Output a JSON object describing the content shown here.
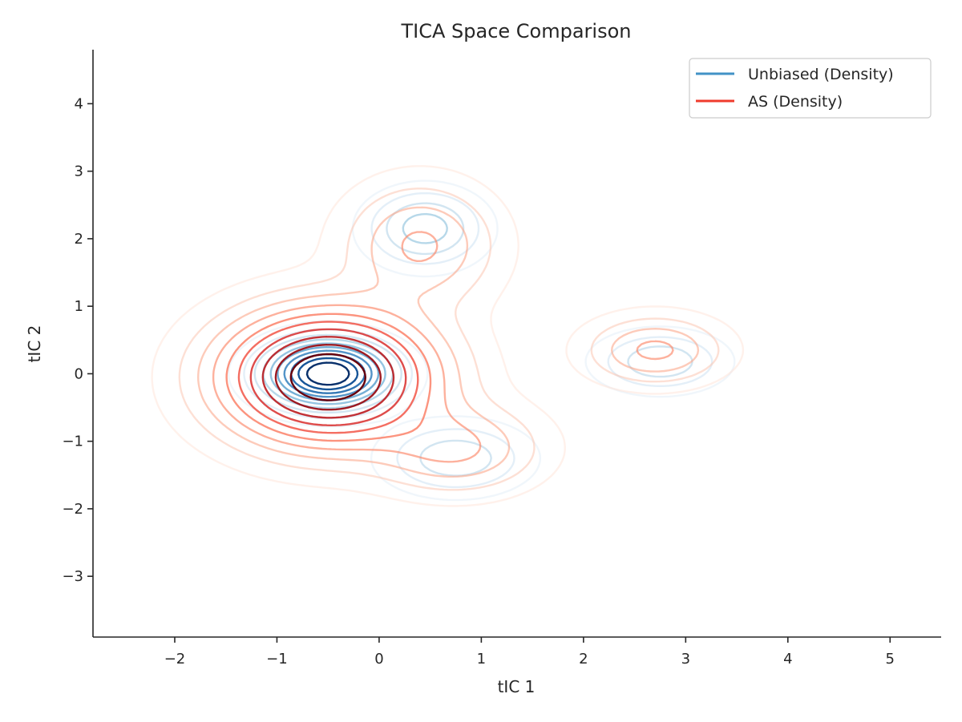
{
  "chart_data": {
    "type": "contour",
    "title": "TICA Space Comparison",
    "xlabel": "tIC 1",
    "ylabel": "tIC 2",
    "xlim": [
      -2.8,
      5.5
    ],
    "ylim": [
      -3.9,
      4.8
    ],
    "xticks": [
      -2,
      -1,
      0,
      1,
      2,
      3,
      4,
      5
    ],
    "yticks": [
      -3,
      -2,
      -1,
      0,
      1,
      2,
      3,
      4
    ],
    "xtick_labels": [
      "−2",
      "−1",
      "0",
      "1",
      "2",
      "3",
      "4",
      "5"
    ],
    "ytick_labels": [
      "−3",
      "−2",
      "−1",
      "0",
      "1",
      "2",
      "3",
      "4"
    ],
    "grid": false,
    "legend": {
      "position": "top-right"
    },
    "series": [
      {
        "name": "Unbiased (Density)",
        "color": "#4292c6",
        "colormap": "Blues",
        "levels": 10,
        "components": [
          {
            "weight": 0.55,
            "mean": [
              -0.5,
              0.0
            ],
            "sd": [
              0.35,
              0.28
            ]
          },
          {
            "weight": 0.14,
            "mean": [
              0.45,
              2.15
            ],
            "sd": [
              0.32,
              0.32
            ]
          },
          {
            "weight": 0.12,
            "mean": [
              0.75,
              -1.25
            ],
            "sd": [
              0.4,
              0.3
            ]
          },
          {
            "weight": 0.09,
            "mean": [
              2.75,
              0.18
            ],
            "sd": [
              0.35,
              0.25
            ]
          }
        ]
      },
      {
        "name": "AS (Density)",
        "color": "#ef3b2c",
        "colormap": "Reds",
        "levels": 10,
        "components": [
          {
            "weight": 0.7,
            "mean": [
              -0.5,
              -0.05
            ],
            "sd": [
              0.62,
              0.58
            ]
          },
          {
            "weight": 0.1,
            "mean": [
              0.4,
              1.9
            ],
            "sd": [
              0.45,
              0.55
            ]
          },
          {
            "weight": 0.08,
            "mean": [
              0.75,
              -1.1
            ],
            "sd": [
              0.5,
              0.4
            ]
          },
          {
            "weight": 0.05,
            "mean": [
              2.7,
              0.35
            ],
            "sd": [
              0.4,
              0.3
            ]
          }
        ]
      }
    ]
  }
}
